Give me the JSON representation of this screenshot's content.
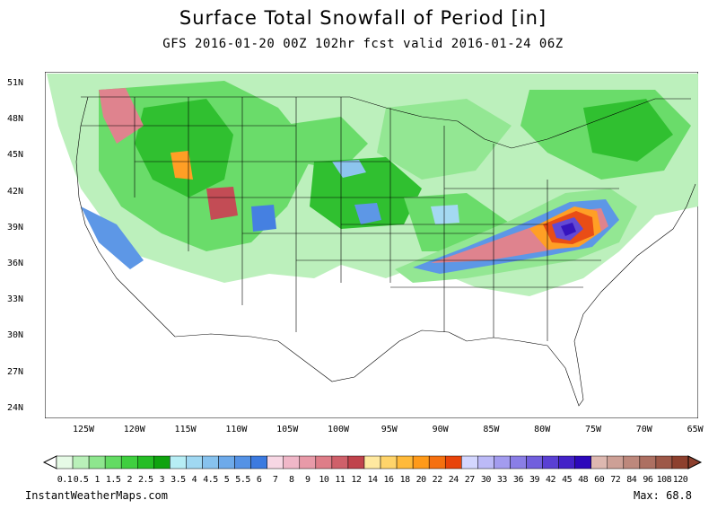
{
  "title": "Surface Total Snowfall of Period [in]",
  "subtitle": "GFS 2016-01-20 00Z 102hr fcst valid 2016-01-24 06Z",
  "lat_labels": [
    "51N",
    "48N",
    "45N",
    "42N",
    "39N",
    "36N",
    "33N",
    "30N",
    "27N",
    "24N"
  ],
  "lon_labels": [
    "125W",
    "120W",
    "115W",
    "110W",
    "105W",
    "100W",
    "95W",
    "90W",
    "85W",
    "80W",
    "75W",
    "70W",
    "65W"
  ],
  "legend": {
    "labels": [
      "0.1",
      "0.5",
      "1",
      "1.5",
      "2",
      "2.5",
      "3",
      "3.5",
      "4",
      "4.5",
      "5",
      "5.5",
      "6",
      "7",
      "8",
      "9",
      "10",
      "11",
      "12",
      "14",
      "16",
      "18",
      "20",
      "22",
      "24",
      "27",
      "30",
      "33",
      "36",
      "39",
      "42",
      "45",
      "48",
      "60",
      "72",
      "84",
      "96",
      "108",
      "120"
    ],
    "colors": [
      "#e6fae6",
      "#b9f0b9",
      "#8ee68e",
      "#63db63",
      "#3fcf3f",
      "#25bd25",
      "#0fa30f",
      "#b7eef5",
      "#a0d8f2",
      "#87c2ee",
      "#6eaaea",
      "#5592e5",
      "#3c7ae0",
      "#f7d7e4",
      "#f0b7c8",
      "#e89aa8",
      "#de7d88",
      "#cf606a",
      "#c0434c",
      "#ffe9a0",
      "#ffd46a",
      "#ffba3a",
      "#ff9a1a",
      "#f57010",
      "#e8440a",
      "#d4d7ff",
      "#bcbaf7",
      "#a39cef",
      "#8a7ee6",
      "#715fdd",
      "#5a40d3",
      "#4322c8",
      "#2c08bb",
      "#ddb8b0",
      "#cda096",
      "#bd887c",
      "#ad7062",
      "#9d5848",
      "#8d402e"
    ]
  },
  "footer": {
    "site": "InstantWeatherMaps.com",
    "max": "Max:  68.8"
  }
}
